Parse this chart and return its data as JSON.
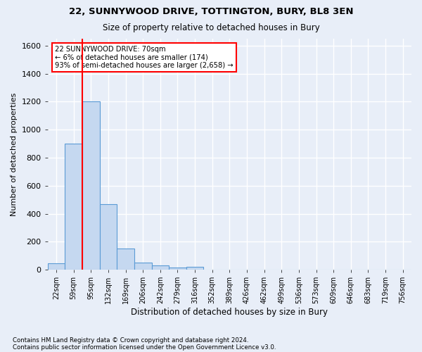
{
  "title1": "22, SUNNYWOOD DRIVE, TOTTINGTON, BURY, BL8 3EN",
  "title2": "Size of property relative to detached houses in Bury",
  "xlabel": "Distribution of detached houses by size in Bury",
  "ylabel": "Number of detached properties",
  "bins": [
    "22sqm",
    "59sqm",
    "95sqm",
    "132sqm",
    "169sqm",
    "206sqm",
    "242sqm",
    "279sqm",
    "316sqm",
    "352sqm",
    "389sqm",
    "426sqm",
    "462sqm",
    "499sqm",
    "536sqm",
    "573sqm",
    "609sqm",
    "646sqm",
    "683sqm",
    "719sqm",
    "756sqm"
  ],
  "values": [
    45,
    900,
    1200,
    470,
    150,
    50,
    30,
    15,
    20,
    0,
    0,
    0,
    0,
    0,
    0,
    0,
    0,
    0,
    0,
    0,
    0
  ],
  "bar_color": "#c5d8f0",
  "bar_edge_color": "#5b9bd5",
  "vline_color": "red",
  "vline_x": 1.5,
  "ylim": [
    0,
    1650
  ],
  "yticks": [
    0,
    200,
    400,
    600,
    800,
    1000,
    1200,
    1400,
    1600
  ],
  "annotation_line1": "22 SUNNYWOOD DRIVE: 70sqm",
  "annotation_line2": "← 6% of detached houses are smaller (174)",
  "annotation_line3": "93% of semi-detached houses are larger (2,658) →",
  "annotation_box_edgecolor": "red",
  "annotation_box_facecolor": "white",
  "footer1": "Contains HM Land Registry data © Crown copyright and database right 2024.",
  "footer2": "Contains public sector information licensed under the Open Government Licence v3.0.",
  "bg_color": "#e8eef8",
  "grid_color": "white"
}
